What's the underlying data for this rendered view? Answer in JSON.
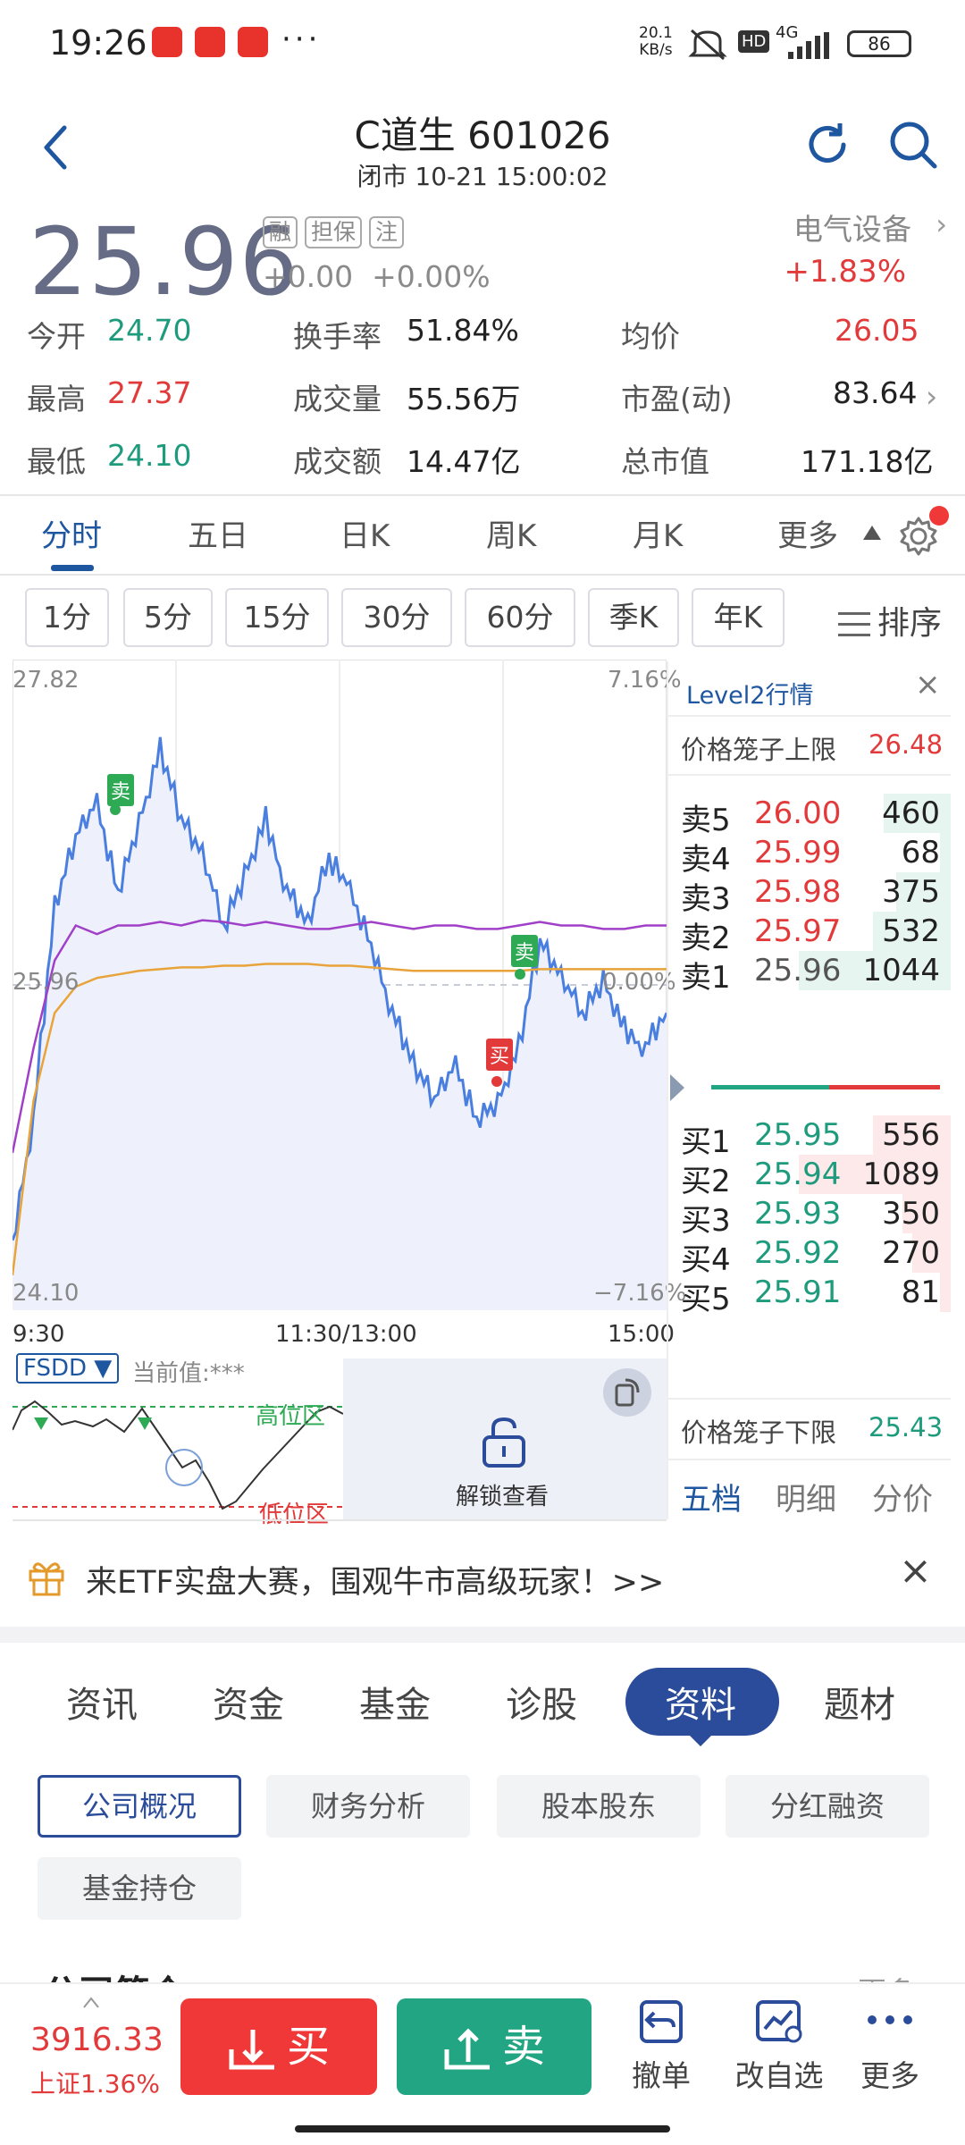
{
  "status_bar": {
    "time": "19:26",
    "net_speed_value": "20.1",
    "net_speed_unit": "KB/s",
    "network": "4G",
    "battery": "86",
    "hd": "HD"
  },
  "header": {
    "title": "C道生 601026",
    "subtitle": "闭市 10-21 15:00:02"
  },
  "quote": {
    "price": "25.96",
    "tags": [
      "融",
      "担保",
      "注"
    ],
    "change": "+0.00",
    "change_pct": "+0.00%",
    "sector": "电气设备",
    "sector_pct": "+1.83%"
  },
  "stats": {
    "open_label": "今开",
    "open": "24.70",
    "turnover_label": "换手率",
    "turnover": "51.84%",
    "avg_label": "均价",
    "avg": "26.05",
    "high_label": "最高",
    "high": "27.37",
    "volume_label": "成交量",
    "volume": "55.56万",
    "pe_label": "市盈(动)",
    "pe": "83.64",
    "low_label": "最低",
    "low": "24.10",
    "amount_label": "成交额",
    "amount": "14.47亿",
    "mcap_label": "总市值",
    "mcap": "171.18亿"
  },
  "ktabs": [
    "分时",
    "五日",
    "日K",
    "周K",
    "月K",
    "更多"
  ],
  "period_chips": [
    "1分",
    "5分",
    "15分",
    "30分",
    "60分",
    "季K",
    "年K"
  ],
  "sort_label": "排序",
  "chart": {
    "y_top": "27.82",
    "y_mid": "25.96",
    "y_bot": "24.10",
    "pct_top": "7.16%",
    "pct_mid": "0.00%",
    "pct_bot": "−7.16%",
    "x_start": "9:30",
    "x_mid": "11:30/13:00",
    "x_end": "15:00",
    "marker_sell": "卖",
    "marker_buy": "买"
  },
  "chart_data": {
    "type": "line",
    "title": "",
    "xlabel": "",
    "ylabel": "",
    "ylim": [
      24.1,
      27.82
    ],
    "x_ticks": [
      "9:30",
      "11:30/13:00",
      "15:00"
    ],
    "series": [
      {
        "name": "",
        "values": [
          24.5,
          25.2,
          26.4,
          26.8,
          27.0,
          26.5,
          26.9,
          27.3,
          26.9,
          26.7,
          26.3,
          26.6,
          26.9,
          26.5,
          26.3,
          26.7,
          26.5,
          26.2,
          25.8,
          25.5,
          25.3,
          25.5,
          25.2,
          25.3,
          25.6,
          26.2,
          26.0,
          25.8,
          26.0,
          25.7,
          25.6,
          25.8
        ]
      },
      {
        "name": "",
        "values": [
          25.0,
          25.6,
          26.1,
          26.3,
          26.25,
          26.3,
          26.3,
          26.32,
          26.3,
          26.33,
          26.32,
          26.3,
          26.32,
          26.3,
          26.28,
          26.28,
          26.3,
          26.32,
          26.3,
          26.28,
          26.3,
          26.3,
          26.28,
          26.28,
          26.3,
          26.32,
          26.3,
          26.3,
          26.28,
          26.28,
          26.3,
          26.3
        ]
      },
      {
        "name": "",
        "values": [
          24.3,
          25.3,
          25.8,
          25.95,
          26.0,
          26.02,
          26.04,
          26.05,
          26.06,
          26.06,
          26.07,
          26.07,
          26.08,
          26.08,
          26.08,
          26.07,
          26.07,
          26.06,
          26.05,
          26.04,
          26.04,
          26.04,
          26.04,
          26.04,
          26.04,
          26.05,
          26.05,
          26.05,
          26.05,
          26.05,
          26.05,
          26.05
        ]
      }
    ]
  },
  "indicator": {
    "name": "FSDD ▼",
    "current": "当前值:***",
    "high_zone": "高位区",
    "low_zone": "低位区",
    "unlock": "解锁查看"
  },
  "level2": {
    "title": "Level2行情",
    "upper_label": "价格笼子上限",
    "upper": "26.48",
    "lower_label": "价格笼子下限",
    "lower": "25.43",
    "asks": [
      {
        "label": "卖5",
        "price": "26.00",
        "vol": "460",
        "ratio": 0.44
      },
      {
        "label": "卖4",
        "price": "25.99",
        "vol": "68",
        "ratio": 0.07
      },
      {
        "label": "卖3",
        "price": "25.98",
        "vol": "375",
        "ratio": 0.36
      },
      {
        "label": "卖2",
        "price": "25.97",
        "vol": "532",
        "ratio": 0.51
      },
      {
        "label": "卖1",
        "price": "25.96",
        "vol": "1044",
        "ratio": 1.0
      }
    ],
    "bids": [
      {
        "label": "买1",
        "price": "25.95",
        "vol": "556",
        "ratio": 0.51
      },
      {
        "label": "买2",
        "price": "25.94",
        "vol": "1089",
        "ratio": 1.0
      },
      {
        "label": "买3",
        "price": "25.93",
        "vol": "350",
        "ratio": 0.32
      },
      {
        "label": "买4",
        "price": "25.92",
        "vol": "270",
        "ratio": 0.25
      },
      {
        "label": "买5",
        "price": "25.91",
        "vol": "81",
        "ratio": 0.07
      }
    ],
    "tabs": [
      "五档",
      "明细",
      "分价"
    ]
  },
  "banner": {
    "text": "来ETF实盘大赛，围观牛市高级玩家！>>"
  },
  "news_tabs": [
    "资讯",
    "资金",
    "基金",
    "诊股",
    "资料",
    "题材"
  ],
  "sub_tabs": [
    "公司概况",
    "财务分析",
    "股本股东",
    "分红融资",
    "基金持仓"
  ],
  "section_peek": "公司简介",
  "section_more": "更多",
  "bottom": {
    "index_value": "3916.33",
    "index_label": "上证1.36%",
    "buy": "买",
    "sell": "卖",
    "cancel": "撤单",
    "watch": "改自选",
    "more": "更多"
  },
  "colors": {
    "up": "#e23a3a",
    "down": "#1e9b7d",
    "accent": "#1e56a0",
    "price_line": "#4a7fe0",
    "avg_line": "#e8a33a",
    "purple_line": "#a040c8"
  }
}
